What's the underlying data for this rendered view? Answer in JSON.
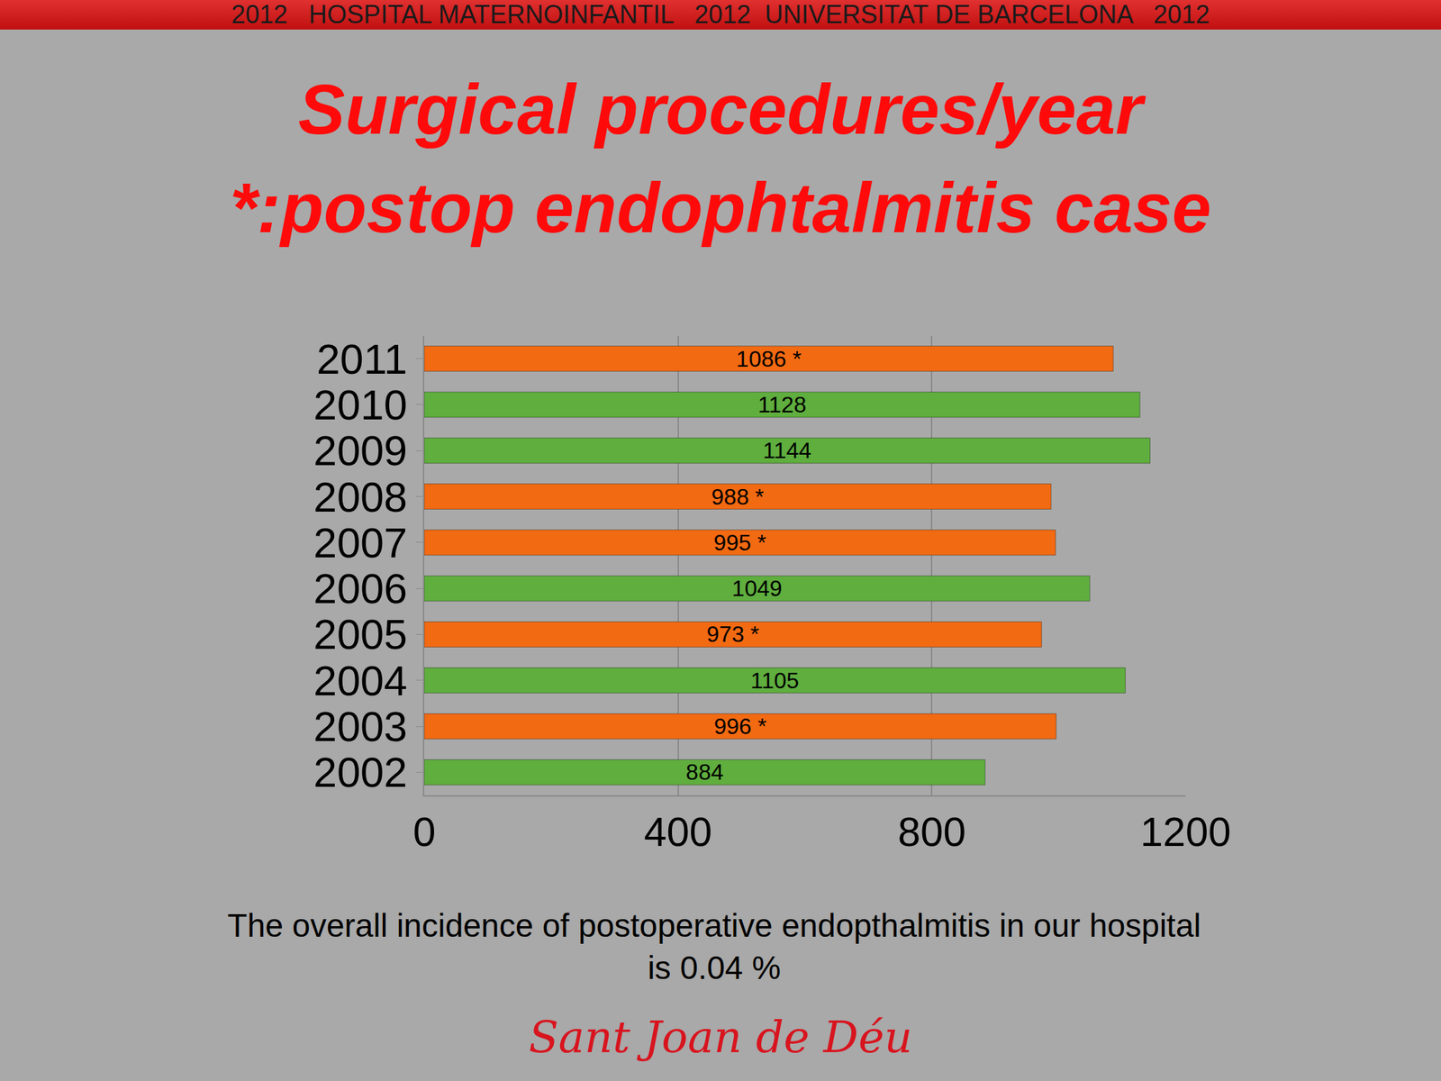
{
  "header": "2012   HOSPITAL MATERNOINFANTIL   2012  UNIVERSITAT DE BARCELONA   2012",
  "logo": "Sant Joan de Déu",
  "chart_data": {
    "type": "bar",
    "orientation": "horizontal",
    "title": "Surgical procedures/year",
    "subtitle": "*:postop endophtalmitis case",
    "note": "The overall incidence of postoperative endopthalmitis in our hospital is 0.04 %",
    "categories": [
      "2002",
      "2003",
      "2004",
      "2005",
      "2006",
      "2007",
      "2008",
      "2009",
      "2010",
      "2011"
    ],
    "values": [
      884,
      996,
      1105,
      973,
      1049,
      995,
      988,
      1144,
      1128,
      1086
    ],
    "value_labels": [
      "884",
      "996 *",
      "1105",
      "973 *",
      "1049",
      "995 *",
      "988 *",
      "1144",
      "1128",
      "1086 *"
    ],
    "colors": [
      "#5fae3e",
      "#f26a12",
      "#5fae3e",
      "#f26a12",
      "#5fae3e",
      "#f26a12",
      "#f26a12",
      "#5fae3e",
      "#5fae3e",
      "#f26a12"
    ],
    "data_labels": true,
    "xlim": [
      0,
      1200
    ],
    "xticks": [
      0,
      400,
      800,
      1200
    ],
    "grid": true
  }
}
